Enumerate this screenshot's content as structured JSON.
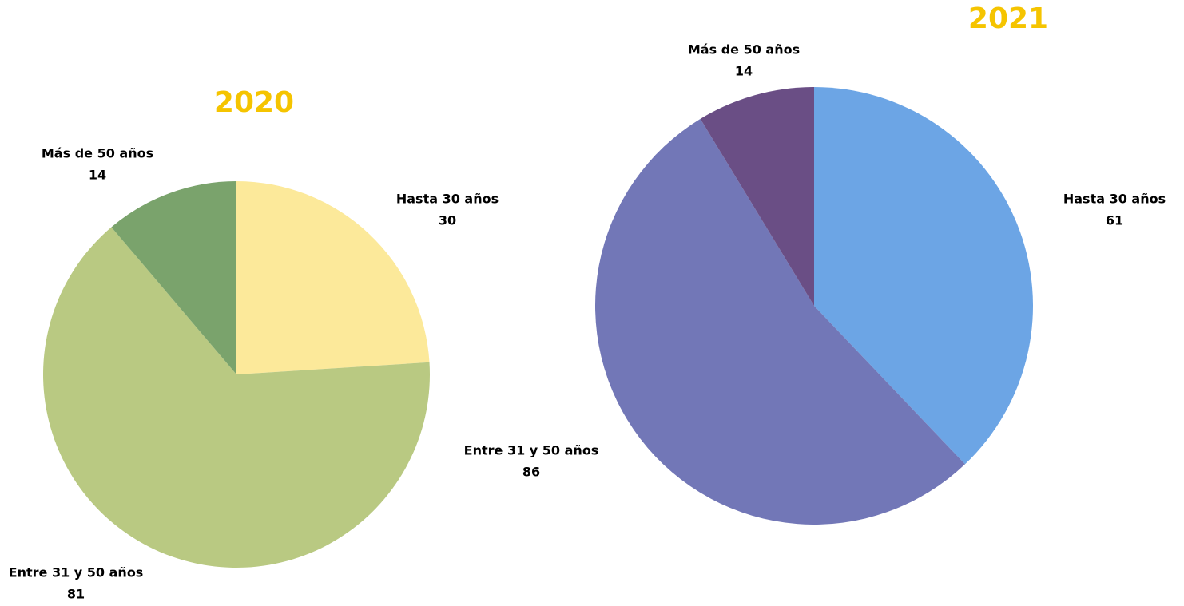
{
  "chart_data": [
    {
      "type": "pie",
      "title": "2020",
      "categories": [
        "Hasta 30 años",
        "Entre 31 y 50 años",
        "Más de 50 años"
      ],
      "values": [
        30,
        81,
        14
      ],
      "colors": [
        "#fce99a",
        "#b9c982",
        "#7aa36c"
      ]
    },
    {
      "type": "pie",
      "title": "2021",
      "categories": [
        "Hasta 30 años",
        "Entre 31 y 50 años",
        "Más de 50 años"
      ],
      "values": [
        61,
        86,
        14
      ],
      "colors": [
        "#6ca5e5",
        "#7277b7",
        "#6a4e85"
      ]
    }
  ]
}
